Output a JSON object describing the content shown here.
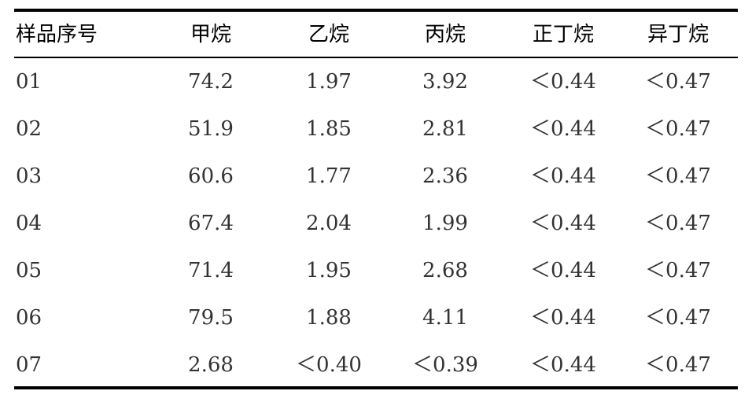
{
  "table": {
    "header": [
      "样品序号",
      "甲烷",
      "乙烷",
      "丙烷",
      "正丁烷",
      "异丁烷"
    ],
    "rows": [
      [
        "01",
        "74.2",
        "1.97",
        "3.92",
        "＜0.44",
        "＜0.47"
      ],
      [
        "02",
        "51.9",
        "1.85",
        "2.81",
        "＜0.44",
        "＜0.47"
      ],
      [
        "03",
        "60.6",
        "1.77",
        "2.36",
        "＜0.44",
        "＜0.47"
      ],
      [
        "04",
        "67.4",
        "2.04",
        "1.99",
        "＜0.44",
        "＜0.47"
      ],
      [
        "05",
        "71.4",
        "1.95",
        "2.68",
        "＜0.44",
        "＜0.47"
      ],
      [
        "06",
        "79.5",
        "1.88",
        "4.11",
        "＜0.44",
        "＜0.47"
      ],
      [
        "07",
        "2.68",
        "＜0.40",
        "＜0.39",
        "＜0.44",
        "＜0.47"
      ]
    ]
  }
}
